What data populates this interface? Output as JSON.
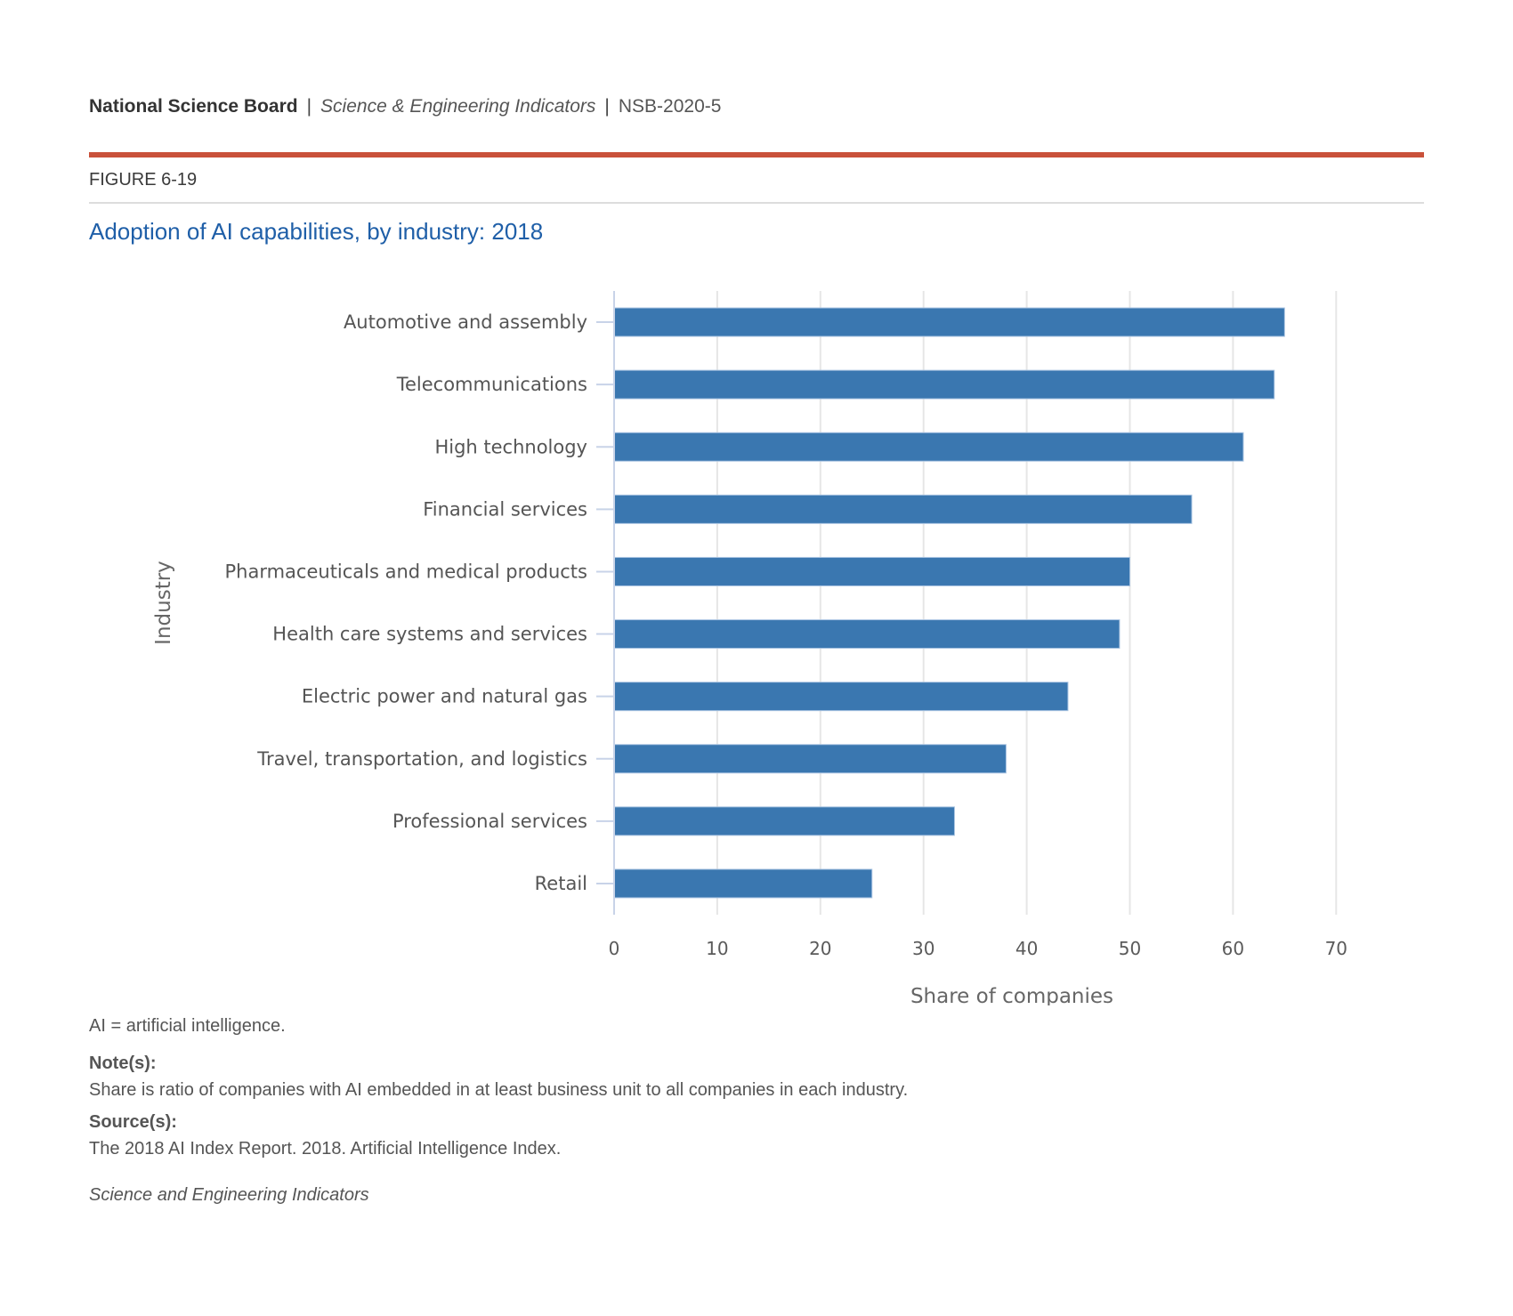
{
  "header": {
    "organization": "National Science Board",
    "separator": "|",
    "publication": "Science & Engineering Indicators",
    "report_id": "NSB-2020-5"
  },
  "figure": {
    "number": "FIGURE 6-19",
    "title": "Adoption of AI capabilities, by industry: 2018"
  },
  "colors": {
    "accent_rule": "#c9513a",
    "title": "#1f5fa8",
    "bar": "#3a77b0",
    "axis": "#c8d3e8",
    "grid": "#e6e6e6"
  },
  "chart_data": {
    "type": "bar",
    "orientation": "horizontal",
    "title": "Adoption of AI capabilities, by industry: 2018",
    "xlabel": "Share of companies",
    "ylabel": "Industry",
    "categories": [
      "Automotive and assembly",
      "Telecommunications",
      "High technology",
      "Financial services",
      "Pharmaceuticals and medical products",
      "Health care systems and services",
      "Electric power and natural gas",
      "Travel, transportation, and logistics",
      "Professional services",
      "Retail"
    ],
    "values": [
      65,
      64,
      61,
      56,
      50,
      49,
      44,
      38,
      33,
      25
    ],
    "xlim": [
      0,
      78
    ],
    "xticks": [
      0,
      10,
      20,
      30,
      40,
      50,
      60,
      70
    ],
    "xtick_labels": [
      "0",
      "10",
      "20",
      "30",
      "40",
      "50",
      "60",
      "70"
    ],
    "grid": true,
    "legend": "none"
  },
  "notes": {
    "abbreviation": "AI = artificial intelligence.",
    "notes_label": "Note(s):",
    "notes_text": "Share is ratio of companies with AI embedded in at least business unit to all companies in each industry.",
    "source_label": "Source(s):",
    "source_text": "The 2018 AI Index Report. 2018. Artificial Intelligence Index.",
    "footer": "Science and Engineering Indicators"
  }
}
